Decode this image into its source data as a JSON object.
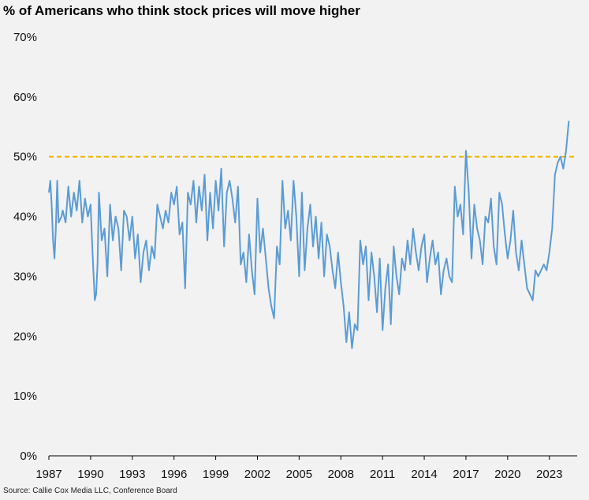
{
  "title": "% of Americans who think stock prices will move higher",
  "source": "Source: Callie Cox Media LLC, Conference Board",
  "chart_data": {
    "type": "line",
    "title": "% of Americans who think stock prices will move higher",
    "xlabel": "",
    "ylabel": "",
    "ylim": [
      0,
      70
    ],
    "xlim": [
      1987,
      2025
    ],
    "y_ticks": [
      "0%",
      "10%",
      "20%",
      "30%",
      "40%",
      "50%",
      "60%",
      "70%"
    ],
    "x_ticks": [
      "1987",
      "1990",
      "1993",
      "1996",
      "1999",
      "2002",
      "2005",
      "2008",
      "2011",
      "2014",
      "2017",
      "2020",
      "2023"
    ],
    "grid": false,
    "reference_line": {
      "y": 50,
      "style": "dashed",
      "color": "#f0b400"
    },
    "series": [
      {
        "color": "#5b9bd5",
        "x": [
          1987.0,
          1987.1,
          1987.2,
          1987.3,
          1987.4,
          1987.5,
          1987.6,
          1987.7,
          1987.9,
          1988.0,
          1988.2,
          1988.4,
          1988.6,
          1988.8,
          1989.0,
          1989.2,
          1989.4,
          1989.6,
          1989.8,
          1990.0,
          1990.1,
          1990.2,
          1990.3,
          1990.4,
          1990.5,
          1990.6,
          1990.7,
          1990.8,
          1990.9,
          1991.0,
          1991.2,
          1991.4,
          1991.6,
          1991.8,
          1992.0,
          1992.2,
          1992.4,
          1992.6,
          1992.8,
          1993.0,
          1993.2,
          1993.4,
          1993.6,
          1993.8,
          1994.0,
          1994.2,
          1994.4,
          1994.6,
          1994.8,
          1995.0,
          1995.2,
          1995.4,
          1995.6,
          1995.8,
          1996.0,
          1996.2,
          1996.4,
          1996.6,
          1996.8,
          1997.0,
          1997.2,
          1997.4,
          1997.6,
          1997.8,
          1998.0,
          1998.2,
          1998.4,
          1998.6,
          1998.8,
          1999.0,
          1999.2,
          1999.4,
          1999.6,
          1999.8,
          2000.0,
          2000.2,
          2000.4,
          2000.6,
          2000.8,
          2001.0,
          2001.2,
          2001.4,
          2001.6,
          2001.8,
          2002.0,
          2002.2,
          2002.4,
          2002.6,
          2002.8,
          2003.0,
          2003.2,
          2003.4,
          2003.6,
          2003.8,
          2004.0,
          2004.2,
          2004.4,
          2004.6,
          2004.8,
          2005.0,
          2005.2,
          2005.4,
          2005.6,
          2005.8,
          2006.0,
          2006.2,
          2006.4,
          2006.6,
          2006.8,
          2007.0,
          2007.2,
          2007.4,
          2007.6,
          2007.8,
          2008.0,
          2008.2,
          2008.4,
          2008.6,
          2008.8,
          2009.0,
          2009.2,
          2009.4,
          2009.6,
          2009.8,
          2010.0,
          2010.2,
          2010.4,
          2010.6,
          2010.8,
          2011.0,
          2011.2,
          2011.4,
          2011.6,
          2011.8,
          2012.0,
          2012.2,
          2012.4,
          2012.6,
          2012.8,
          2013.0,
          2013.2,
          2013.4,
          2013.6,
          2013.8,
          2014.0,
          2014.2,
          2014.4,
          2014.6,
          2014.8,
          2015.0,
          2015.2,
          2015.4,
          2015.6,
          2015.8,
          2016.0,
          2016.2,
          2016.4,
          2016.6,
          2016.8,
          2017.0,
          2017.2,
          2017.4,
          2017.6,
          2017.8,
          2018.0,
          2018.2,
          2018.4,
          2018.6,
          2018.8,
          2019.0,
          2019.2,
          2019.4,
          2019.6,
          2019.8,
          2020.0,
          2020.2,
          2020.4,
          2020.6,
          2020.8,
          2021.0,
          2021.2,
          2021.4,
          2021.6,
          2021.8,
          2022.0,
          2022.2,
          2022.4,
          2022.6,
          2022.8,
          2023.0,
          2023.2,
          2023.4,
          2023.6,
          2023.8,
          2024.0,
          2024.2,
          2024.4
        ],
        "y": [
          44,
          46,
          42,
          36,
          33,
          38,
          46,
          39,
          40,
          41,
          39,
          45,
          40,
          44,
          41,
          46,
          39,
          43,
          40,
          42,
          36,
          31,
          26,
          27,
          32,
          44,
          40,
          36,
          37,
          38,
          30,
          42,
          36,
          40,
          38,
          31,
          41,
          40,
          36,
          40,
          33,
          37,
          29,
          34,
          36,
          31,
          35,
          33,
          42,
          40,
          38,
          41,
          39,
          44,
          42,
          45,
          37,
          39,
          28,
          44,
          42,
          46,
          39,
          45,
          41,
          47,
          36,
          44,
          38,
          46,
          41,
          48,
          35,
          44,
          46,
          43,
          39,
          45,
          32,
          34,
          29,
          37,
          31,
          27,
          43,
          34,
          38,
          33,
          28,
          25,
          23,
          35,
          32,
          46,
          38,
          41,
          36,
          46,
          40,
          30,
          44,
          31,
          38,
          42,
          35,
          40,
          33,
          39,
          30,
          37,
          35,
          31,
          28,
          34,
          29,
          25,
          19,
          24,
          18,
          22,
          21,
          36,
          32,
          35,
          26,
          34,
          30,
          24,
          33,
          21,
          28,
          32,
          22,
          35,
          30,
          27,
          33,
          31,
          36,
          32,
          38,
          34,
          31,
          35,
          37,
          29,
          33,
          36,
          32,
          34,
          27,
          31,
          33,
          30,
          29,
          45,
          40,
          42,
          37,
          51,
          44,
          33,
          42,
          38,
          36,
          32,
          40,
          39,
          43,
          35,
          32,
          44,
          42,
          37,
          33,
          36,
          41,
          34,
          31,
          36,
          32,
          28,
          27,
          26,
          31,
          30,
          31,
          32,
          31,
          34,
          38,
          47,
          49,
          50,
          48,
          51,
          56
        ]
      }
    ]
  }
}
